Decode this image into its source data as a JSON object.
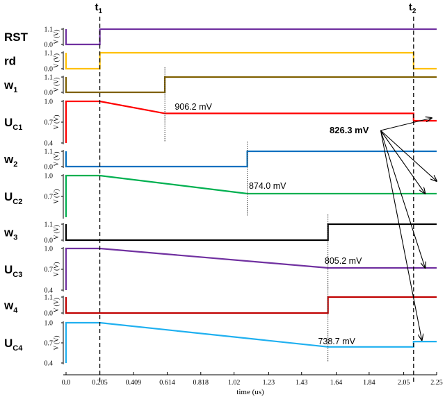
{
  "chart_data": {
    "type": "line",
    "xlabel": "time (us)",
    "x_ticks": [
      "0.0",
      "0.205",
      "0.409",
      "0.614",
      "0.818",
      "1.02",
      "1.23",
      "1.43",
      "1.64",
      "1.84",
      "2.05",
      "2.25"
    ],
    "x_range": [
      0,
      2.25
    ],
    "markers": [
      {
        "name": "t",
        "sub": "1",
        "x": 0.205
      },
      {
        "name": "t",
        "sub": "2",
        "x": 2.11
      }
    ],
    "panel_ylabel": "V (V)",
    "panels": [
      {
        "name": "RST",
        "sub": "",
        "kind": "digital",
        "color": "#7030a0",
        "yticks": [
          "1.1",
          "0.0"
        ],
        "ylim": [
          0,
          1.1
        ],
        "points": [
          [
            0,
            1.1
          ],
          [
            0,
            0
          ],
          [
            0.205,
            0
          ],
          [
            0.205,
            1.1
          ],
          [
            2.25,
            1.1
          ]
        ]
      },
      {
        "name": "rd",
        "sub": "",
        "kind": "digital",
        "color": "#ffc000",
        "yticks": [
          "1.1",
          "0.0"
        ],
        "ylim": [
          0,
          1.1
        ],
        "points": [
          [
            0,
            1.1
          ],
          [
            0,
            0
          ],
          [
            0.205,
            0
          ],
          [
            0.205,
            1.1
          ],
          [
            2.11,
            1.1
          ],
          [
            2.11,
            0
          ],
          [
            2.25,
            0
          ]
        ]
      },
      {
        "name": "w",
        "sub": "1",
        "kind": "digital",
        "color": "#7f6000",
        "yticks": [
          "1.1",
          "0.0"
        ],
        "ylim": [
          0,
          1.1
        ],
        "points": [
          [
            0,
            1.1
          ],
          [
            0,
            0
          ],
          [
            0.6,
            0
          ],
          [
            0.6,
            1.1
          ],
          [
            2.25,
            1.1
          ]
        ]
      },
      {
        "name": "U",
        "sub": "C1",
        "kind": "analog",
        "color": "#ff0000",
        "yticks": [
          "1.0",
          "0.7",
          "0.4"
        ],
        "ylim": [
          0.4,
          1.0
        ],
        "points": [
          [
            0,
            0.4
          ],
          [
            0,
            1.0
          ],
          [
            0.205,
            1.0
          ],
          [
            0.6,
            0.826
          ],
          [
            2.11,
            0.826
          ],
          [
            2.11,
            0.72
          ],
          [
            2.25,
            0.72
          ]
        ]
      },
      {
        "name": "w",
        "sub": "2",
        "kind": "digital",
        "color": "#0070c0",
        "yticks": [
          "1.1",
          "0.0"
        ],
        "ylim": [
          0,
          1.1
        ],
        "points": [
          [
            0,
            1.1
          ],
          [
            0,
            0
          ],
          [
            1.1,
            0
          ],
          [
            1.1,
            1.1
          ],
          [
            2.25,
            1.1
          ]
        ]
      },
      {
        "name": "U",
        "sub": "C2",
        "kind": "analog",
        "color": "#00b050",
        "yticks": [
          "1.0",
          "0.7"
        ],
        "ylim": [
          0.4,
          1.0
        ],
        "points": [
          [
            0,
            0.4
          ],
          [
            0,
            1.0
          ],
          [
            0.205,
            1.0
          ],
          [
            1.1,
            0.74
          ],
          [
            2.25,
            0.74
          ]
        ]
      },
      {
        "name": "w",
        "sub": "3",
        "kind": "digital",
        "color": "#000000",
        "yticks": [
          "1.1",
          "0.0"
        ],
        "ylim": [
          0,
          1.1
        ],
        "points": [
          [
            0,
            1.1
          ],
          [
            0,
            0
          ],
          [
            1.59,
            0
          ],
          [
            1.59,
            1.1
          ],
          [
            2.25,
            1.1
          ]
        ]
      },
      {
        "name": "U",
        "sub": "C3",
        "kind": "analog",
        "color": "#7030a0",
        "yticks": [
          "1.0",
          "0.7",
          "0.4"
        ],
        "ylim": [
          0.4,
          1.0
        ],
        "points": [
          [
            0,
            0.4
          ],
          [
            0,
            1.0
          ],
          [
            0.205,
            1.0
          ],
          [
            1.59,
            0.72
          ],
          [
            2.25,
            0.72
          ]
        ]
      },
      {
        "name": "w",
        "sub": "4",
        "kind": "digital",
        "color": "#c00000",
        "yticks": [
          "1.1",
          "0.0"
        ],
        "ylim": [
          0,
          1.1
        ],
        "points": [
          [
            0,
            1.1
          ],
          [
            0,
            0
          ],
          [
            1.59,
            0
          ],
          [
            1.59,
            1.1
          ],
          [
            2.25,
            1.1
          ]
        ]
      },
      {
        "name": "U",
        "sub": "C4",
        "kind": "analog",
        "color": "#1fb0f0",
        "yticks": [
          "1.0",
          "0.7",
          "0.4"
        ],
        "ylim": [
          0.4,
          1.0
        ],
        "points": [
          [
            0,
            0.4
          ],
          [
            0,
            1.0
          ],
          [
            0.205,
            1.0
          ],
          [
            1.59,
            0.64
          ],
          [
            2.11,
            0.64
          ],
          [
            2.11,
            0.72
          ],
          [
            2.25,
            0.72
          ]
        ]
      }
    ],
    "annotations": [
      {
        "text": "906.2 mV",
        "panel": 3,
        "x": 0.66,
        "y": 0.88,
        "bold": false
      },
      {
        "text": "874.0 mV",
        "panel": 5,
        "x": 1.11,
        "y": 0.81,
        "bold": false
      },
      {
        "text": "805.2 mV",
        "panel": 7,
        "x": 1.57,
        "y": 0.78,
        "bold": false
      },
      {
        "text": "738.7 mV",
        "panel": 9,
        "x": 1.53,
        "y": 0.68,
        "bold": false
      },
      {
        "text": "826.3 mV",
        "panel": 3,
        "x": 1.6,
        "y": 0.54,
        "bold": true
      }
    ],
    "dotted_marks": [
      {
        "x": 0.6,
        "panel": 2
      },
      {
        "x": 1.1,
        "panel": 4
      },
      {
        "x": 1.59,
        "panel": 6
      },
      {
        "x": 1.59,
        "panel": 8
      }
    ],
    "arrows": [
      {
        "from_panel": 3,
        "from": [
          1.91,
          0.58
        ],
        "to_panel": 3,
        "to": [
          2.22,
          0.76
        ]
      },
      {
        "from_panel": 3,
        "from": [
          1.91,
          0.58
        ],
        "to_panel": 5,
        "to": [
          2.18,
          0.74
        ]
      },
      {
        "from_panel": 3,
        "from": [
          1.91,
          0.58
        ],
        "to_panel": 7,
        "to": [
          2.18,
          0.72
        ]
      },
      {
        "from_panel": 3,
        "from": [
          1.91,
          0.58
        ],
        "to_panel": 9,
        "to": [
          2.16,
          0.74
        ]
      },
      {
        "from_panel": 3,
        "from": [
          1.91,
          0.58
        ],
        "to_panel": 5,
        "to": [
          2.25,
          0.92
        ]
      }
    ]
  }
}
